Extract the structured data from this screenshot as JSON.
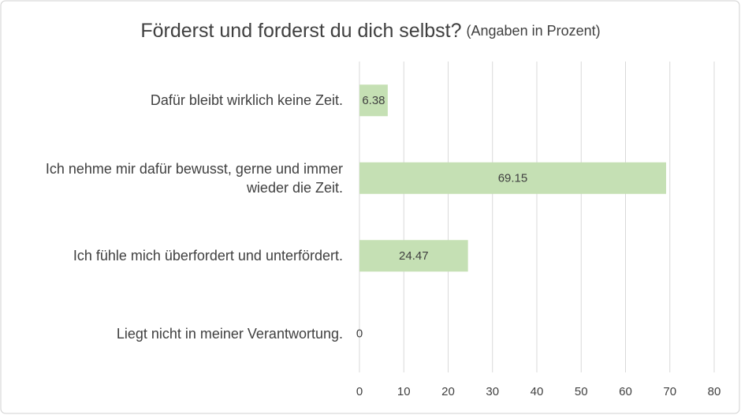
{
  "chart_data": {
    "type": "bar",
    "orientation": "horizontal",
    "title": "Förderst und forderst du dich selbst?",
    "subtitle": "(Angaben in Prozent)",
    "categories": [
      "Dafür bleibt wirklich keine Zeit.",
      "Ich nehme mir dafür bewusst, gerne und immer wieder die Zeit.",
      "Ich fühle mich überfordert und unterfördert.",
      "Liegt nicht in meiner Verantwortung."
    ],
    "values": [
      6.38,
      69.15,
      24.47,
      0
    ],
    "color": "#c5e0b4",
    "xlim": [
      0,
      80
    ],
    "xticks": [
      0,
      10,
      20,
      30,
      40,
      50,
      60,
      70,
      80
    ],
    "grid": true
  }
}
